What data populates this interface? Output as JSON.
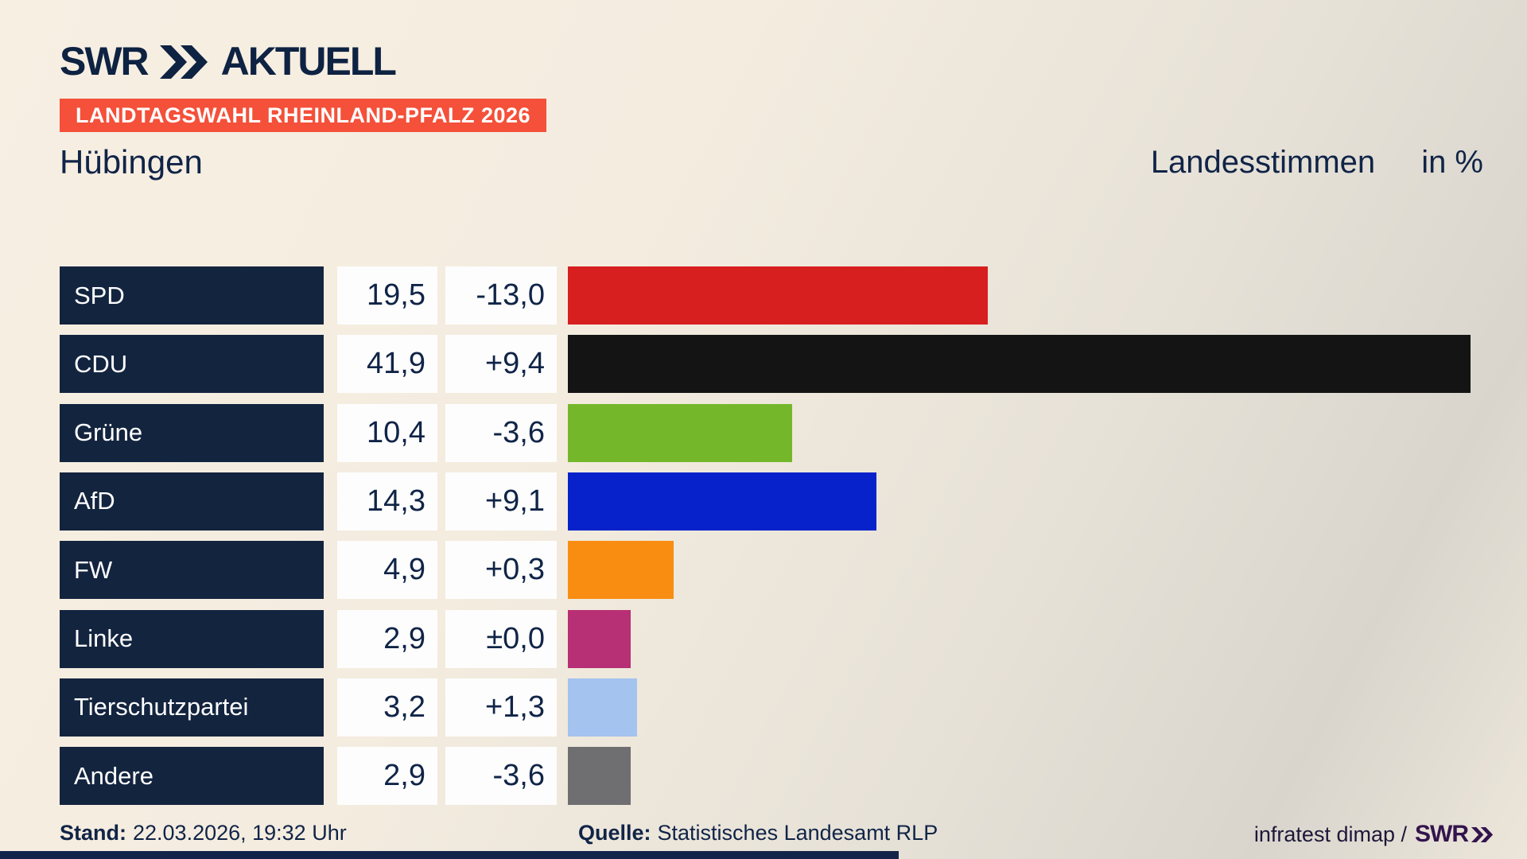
{
  "header": {
    "logo_text": "SWR",
    "logo_suffix": "AKTUELL",
    "banner": "LANDTAGSWAHL RHEINLAND-PFALZ 2026"
  },
  "title": {
    "municipality": "Hübingen",
    "vote_type": "Landesstimmen",
    "unit": "in %"
  },
  "chart_data": {
    "type": "bar",
    "orientation": "horizontal",
    "title": "Hübingen — Landesstimmen in %",
    "categories": [
      "SPD",
      "CDU",
      "Grüne",
      "AfD",
      "FW",
      "Linke",
      "Tierschutzpartei",
      "Andere"
    ],
    "values": [
      19.5,
      41.9,
      10.4,
      14.3,
      4.9,
      2.9,
      3.2,
      2.9
    ],
    "value_labels": [
      "19,5",
      "41,9",
      "10,4",
      "14,3",
      "4,9",
      "2,9",
      "3,2",
      "2,9"
    ],
    "change_labels": [
      "-13,0",
      "+9,4",
      "-3,6",
      "+9,1",
      "+0,3",
      "±0,0",
      "+1,3",
      "-3,6"
    ],
    "bar_colors": [
      "#d71f1f",
      "#141414",
      "#75b72a",
      "#0822cb",
      "#f98d12",
      "#b72f74",
      "#a4c3ee",
      "#6f6f71"
    ],
    "unit": "%",
    "xlim": [
      0,
      44
    ],
    "grid": false,
    "legend": false
  },
  "footer": {
    "stand_label": "Stand:",
    "stand_value": "22.03.2026, 19:32 Uhr",
    "quelle_label": "Quelle:",
    "quelle_value": "Statistisches Landesamt RLP",
    "credit_text": "infratest dimap /",
    "credit_logo": "SWR"
  },
  "colors": {
    "background_top": "#f7efe2",
    "background_bottom": "#d9d5cd",
    "navy": "#102447",
    "banner_red": "#f4503a",
    "party_box": "#13243f",
    "value_box": "#fdfdfd",
    "credit_purple": "#33134d"
  }
}
